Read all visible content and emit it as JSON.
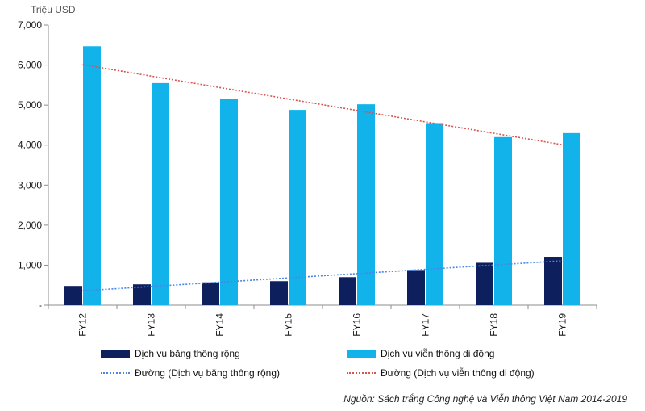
{
  "unit_label": "Triệu USD",
  "colors": {
    "broadband": "#0d1f5c",
    "mobile": "#12b3ea",
    "broadband_trend": "#4a86e8",
    "mobile_trend": "#d9534f",
    "axis": "#8c8c8c",
    "tick_text": "#1a1a1a"
  },
  "chart_data": {
    "type": "bar",
    "categories": [
      "FY12",
      "FY13",
      "FY14",
      "FY15",
      "FY16",
      "FY17",
      "FY18",
      "FY19"
    ],
    "series": [
      {
        "name": "Dịch vụ băng thông rộng",
        "values": [
          480,
          520,
          570,
          600,
          700,
          880,
          1060,
          1210
        ]
      },
      {
        "name": "Dịch vụ viễn thông di động",
        "values": [
          6470,
          5550,
          5150,
          4880,
          5020,
          4550,
          4200,
          4300
        ]
      }
    ],
    "trendlines": [
      {
        "name": "Đường (Dịch vụ băng thông rộng)",
        "values": [
          360,
          1110
        ]
      },
      {
        "name": "Đường (Dịch vụ viễn thông di động)",
        "values": [
          6010,
          4010
        ]
      }
    ],
    "ylim": [
      0,
      7000
    ],
    "yticks": [
      0,
      1000,
      2000,
      3000,
      4000,
      5000,
      6000,
      7000
    ],
    "ytick_labels": [
      "-",
      "1,000",
      "2,000",
      "3,000",
      "4,000",
      "5,000",
      "6,000",
      "7,000"
    ],
    "grid": false,
    "legend_position": "bottom"
  },
  "source_note": "Nguồn: Sách trắng Công nghệ và Viễn thông Việt Nam 2014-2019"
}
